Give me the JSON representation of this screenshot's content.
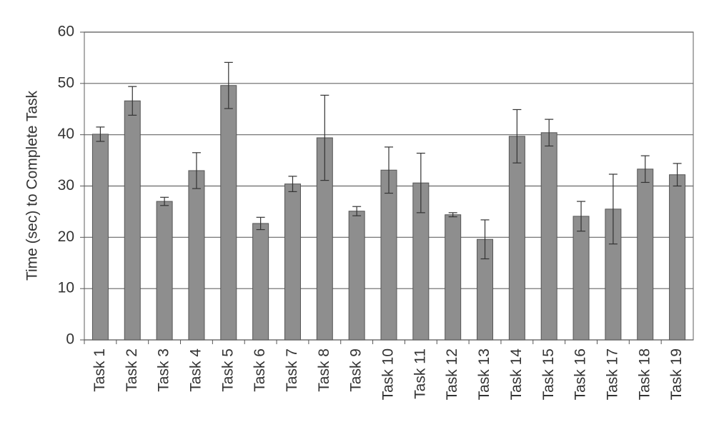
{
  "chart_data": {
    "type": "bar",
    "y_label": "Time (sec) to Complete Task",
    "categories": [
      "Task 1",
      "Task 2",
      "Task 3",
      "Task 4",
      "Task 5",
      "Task 6",
      "Task 7",
      "Task 8",
      "Task 9",
      "Task 10",
      "Task 11",
      "Task 12",
      "Task 13",
      "Task 14",
      "Task 15",
      "Task 16",
      "Task 17",
      "Task 18",
      "Task 19"
    ],
    "values": [
      40.1,
      46.6,
      27,
      33,
      49.6,
      22.7,
      30.4,
      39.4,
      25.1,
      33.1,
      30.6,
      24.4,
      19.6,
      39.7,
      40.4,
      24.1,
      25.5,
      33.3,
      32.2
    ],
    "errors": [
      1.4,
      2.8,
      0.8,
      3.5,
      4.5,
      1.2,
      1.5,
      8.3,
      0.9,
      4.5,
      5.8,
      0.4,
      3.8,
      5.2,
      2.6,
      2.9,
      6.8,
      2.6,
      2.2
    ],
    "color": "#8e8e8e",
    "ylim": [
      0,
      60
    ],
    "yticks": [
      0,
      10,
      20,
      30,
      40,
      50,
      60
    ],
    "grid": true
  }
}
